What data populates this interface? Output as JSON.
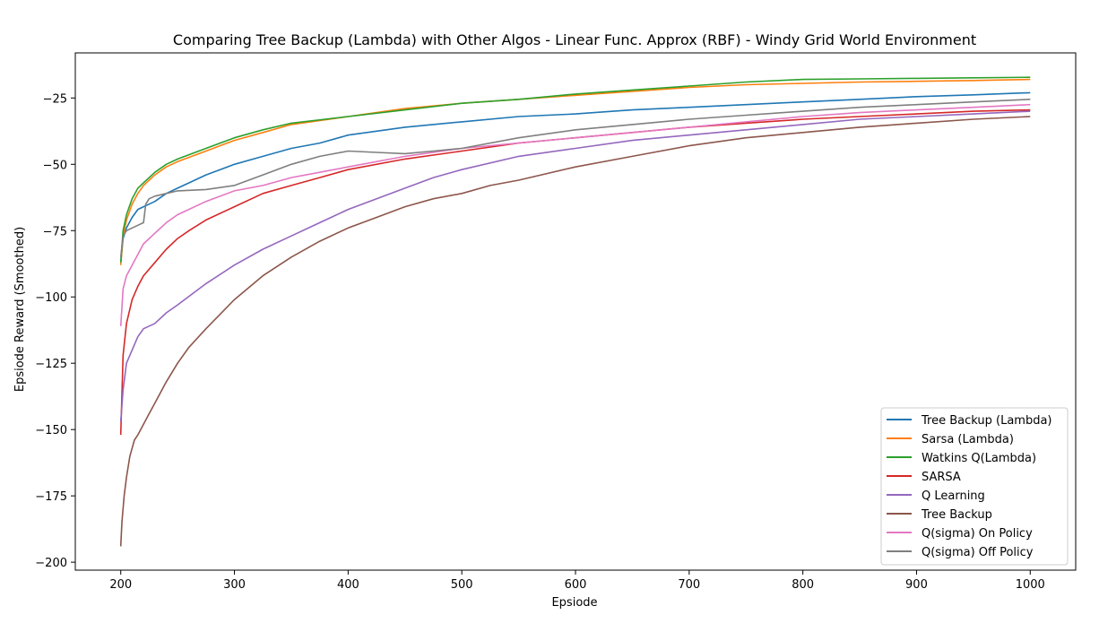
{
  "chart_data": {
    "type": "line",
    "title": "Comparing Tree Backup (Lambda) with Other Algos - Linear Func. Approx (RBF) - Windy Grid World Environment",
    "xlabel": "Epsiode",
    "ylabel": "Epsiode Reward (Smoothed)",
    "xlim": [
      160,
      1040
    ],
    "ylim": [
      -203,
      -8
    ],
    "xticks": [
      200,
      300,
      400,
      500,
      600,
      700,
      800,
      900,
      1000
    ],
    "yticks": [
      -200,
      -175,
      -150,
      -125,
      -100,
      -75,
      -50,
      -25
    ],
    "xtick_labels": [
      "200",
      "300",
      "400",
      "500",
      "600",
      "700",
      "800",
      "900",
      "1000"
    ],
    "ytick_labels": [
      "−200",
      "−175",
      "−150",
      "−125",
      "−100",
      "−75",
      "−50",
      "−25"
    ],
    "grid": false,
    "legend_position": "lower-right",
    "series": [
      {
        "name": "Tree Backup (Lambda)",
        "color": "#1f77b4",
        "x": [
          200,
          202,
          205,
          210,
          215,
          220,
          225,
          230,
          240,
          250,
          260,
          275,
          300,
          325,
          350,
          375,
          400,
          450,
          500,
          550,
          600,
          650,
          700,
          750,
          800,
          850,
          900,
          950,
          1000
        ],
        "y": [
          -87,
          -78,
          -74,
          -70,
          -67,
          -66,
          -65,
          -64,
          -61,
          -59,
          -57,
          -54,
          -50,
          -47,
          -44,
          -42,
          -39,
          -36,
          -34,
          -32,
          -31,
          -29.5,
          -28.5,
          -27.5,
          -26.5,
          -25.5,
          -24.5,
          -23.8,
          -23
        ]
      },
      {
        "name": "Sarsa (Lambda)",
        "color": "#ff7f0e",
        "x": [
          200,
          202,
          205,
          210,
          215,
          220,
          230,
          240,
          250,
          275,
          300,
          325,
          350,
          400,
          450,
          500,
          550,
          600,
          650,
          700,
          750,
          800,
          850,
          900,
          950,
          1000
        ],
        "y": [
          -88,
          -77,
          -71,
          -65,
          -61,
          -58,
          -54,
          -51,
          -49,
          -45,
          -41,
          -38,
          -35,
          -32,
          -29,
          -27,
          -25.5,
          -24,
          -22.5,
          -21,
          -20,
          -19.5,
          -19,
          -18.7,
          -18.4,
          -18
        ]
      },
      {
        "name": "Watkins Q(Lambda)",
        "color": "#2ca02c",
        "x": [
          200,
          202,
          205,
          210,
          215,
          220,
          230,
          240,
          250,
          275,
          300,
          325,
          350,
          400,
          450,
          500,
          550,
          600,
          650,
          700,
          750,
          800,
          850,
          900,
          950,
          1000
        ],
        "y": [
          -87,
          -75,
          -69,
          -63,
          -59,
          -57,
          -53,
          -50,
          -48,
          -44,
          -40,
          -37,
          -34.5,
          -32,
          -29.5,
          -27,
          -25.5,
          -23.5,
          -22,
          -20.5,
          -19,
          -18,
          -17.8,
          -17.6,
          -17.4,
          -17.2
        ]
      },
      {
        "name": "SARSA",
        "color": "#d62728",
        "x": [
          200,
          202,
          205,
          210,
          215,
          220,
          230,
          240,
          250,
          260,
          275,
          300,
          325,
          350,
          375,
          400,
          450,
          500,
          550,
          600,
          650,
          700,
          750,
          800,
          850,
          900,
          950,
          1000
        ],
        "y": [
          -152,
          -122,
          -110,
          -101,
          -96,
          -92,
          -87,
          -82,
          -78,
          -75,
          -71,
          -66,
          -61,
          -58,
          -55,
          -52,
          -48,
          -45,
          -42,
          -40,
          -38,
          -36,
          -34.5,
          -33,
          -32,
          -31,
          -30,
          -29.5
        ]
      },
      {
        "name": "Q Learning",
        "color": "#9467bd",
        "x": [
          200,
          202,
          205,
          210,
          215,
          220,
          230,
          240,
          250,
          275,
          300,
          325,
          350,
          375,
          400,
          425,
          450,
          475,
          500,
          550,
          600,
          650,
          700,
          750,
          800,
          850,
          900,
          950,
          1000
        ],
        "y": [
          -147,
          -135,
          -125,
          -120,
          -115,
          -112,
          -110,
          -106,
          -103,
          -95,
          -88,
          -82,
          -77,
          -72,
          -67,
          -63,
          -59,
          -55,
          -52,
          -47,
          -44,
          -41,
          -39,
          -37,
          -35,
          -33,
          -32,
          -31,
          -30
        ]
      },
      {
        "name": "Tree Backup",
        "color": "#8c564b",
        "x": [
          200,
          201,
          203,
          205,
          208,
          212,
          215,
          220,
          225,
          230,
          240,
          250,
          260,
          275,
          300,
          325,
          350,
          375,
          400,
          425,
          450,
          475,
          500,
          525,
          550,
          600,
          650,
          700,
          750,
          800,
          850,
          900,
          950,
          1000
        ],
        "y": [
          -194,
          -185,
          -175,
          -168,
          -160,
          -154,
          -152,
          -148,
          -144,
          -140,
          -132,
          -125,
          -119,
          -112,
          -101,
          -92,
          -85,
          -79,
          -74,
          -70,
          -66,
          -63,
          -61,
          -58,
          -56,
          -51,
          -47,
          -43,
          -40,
          -38,
          -36,
          -34.5,
          -33,
          -32
        ]
      },
      {
        "name": "Q(sigma) On Policy",
        "color": "#e377c2",
        "x": [
          200,
          202,
          205,
          210,
          215,
          220,
          230,
          240,
          250,
          275,
          300,
          325,
          350,
          375,
          400,
          450,
          500,
          550,
          600,
          650,
          700,
          750,
          800,
          850,
          900,
          950,
          1000
        ],
        "y": [
          -111,
          -97,
          -92,
          -88,
          -84,
          -80,
          -76,
          -72,
          -69,
          -64,
          -60,
          -58,
          -55,
          -53,
          -51,
          -47,
          -44,
          -42,
          -40,
          -38,
          -36,
          -34,
          -32,
          -30.5,
          -29.5,
          -28.5,
          -27.5
        ]
      },
      {
        "name": "Q(sigma) Off Policy",
        "color": "#7f7f7f",
        "x": [
          200,
          202,
          205,
          210,
          215,
          220,
          222,
          225,
          230,
          240,
          250,
          275,
          300,
          325,
          350,
          375,
          400,
          425,
          450,
          475,
          500,
          550,
          600,
          650,
          700,
          750,
          800,
          850,
          900,
          950,
          1000
        ],
        "y": [
          -85,
          -77,
          -75,
          -74,
          -73,
          -72,
          -65,
          -63,
          -62,
          -61,
          -60,
          -59.5,
          -58,
          -54,
          -50,
          -47,
          -45,
          -45.5,
          -46,
          -45,
          -44,
          -40,
          -37,
          -35,
          -33,
          -31.5,
          -30,
          -28.5,
          -27.5,
          -26.5,
          -25.5
        ]
      }
    ]
  }
}
